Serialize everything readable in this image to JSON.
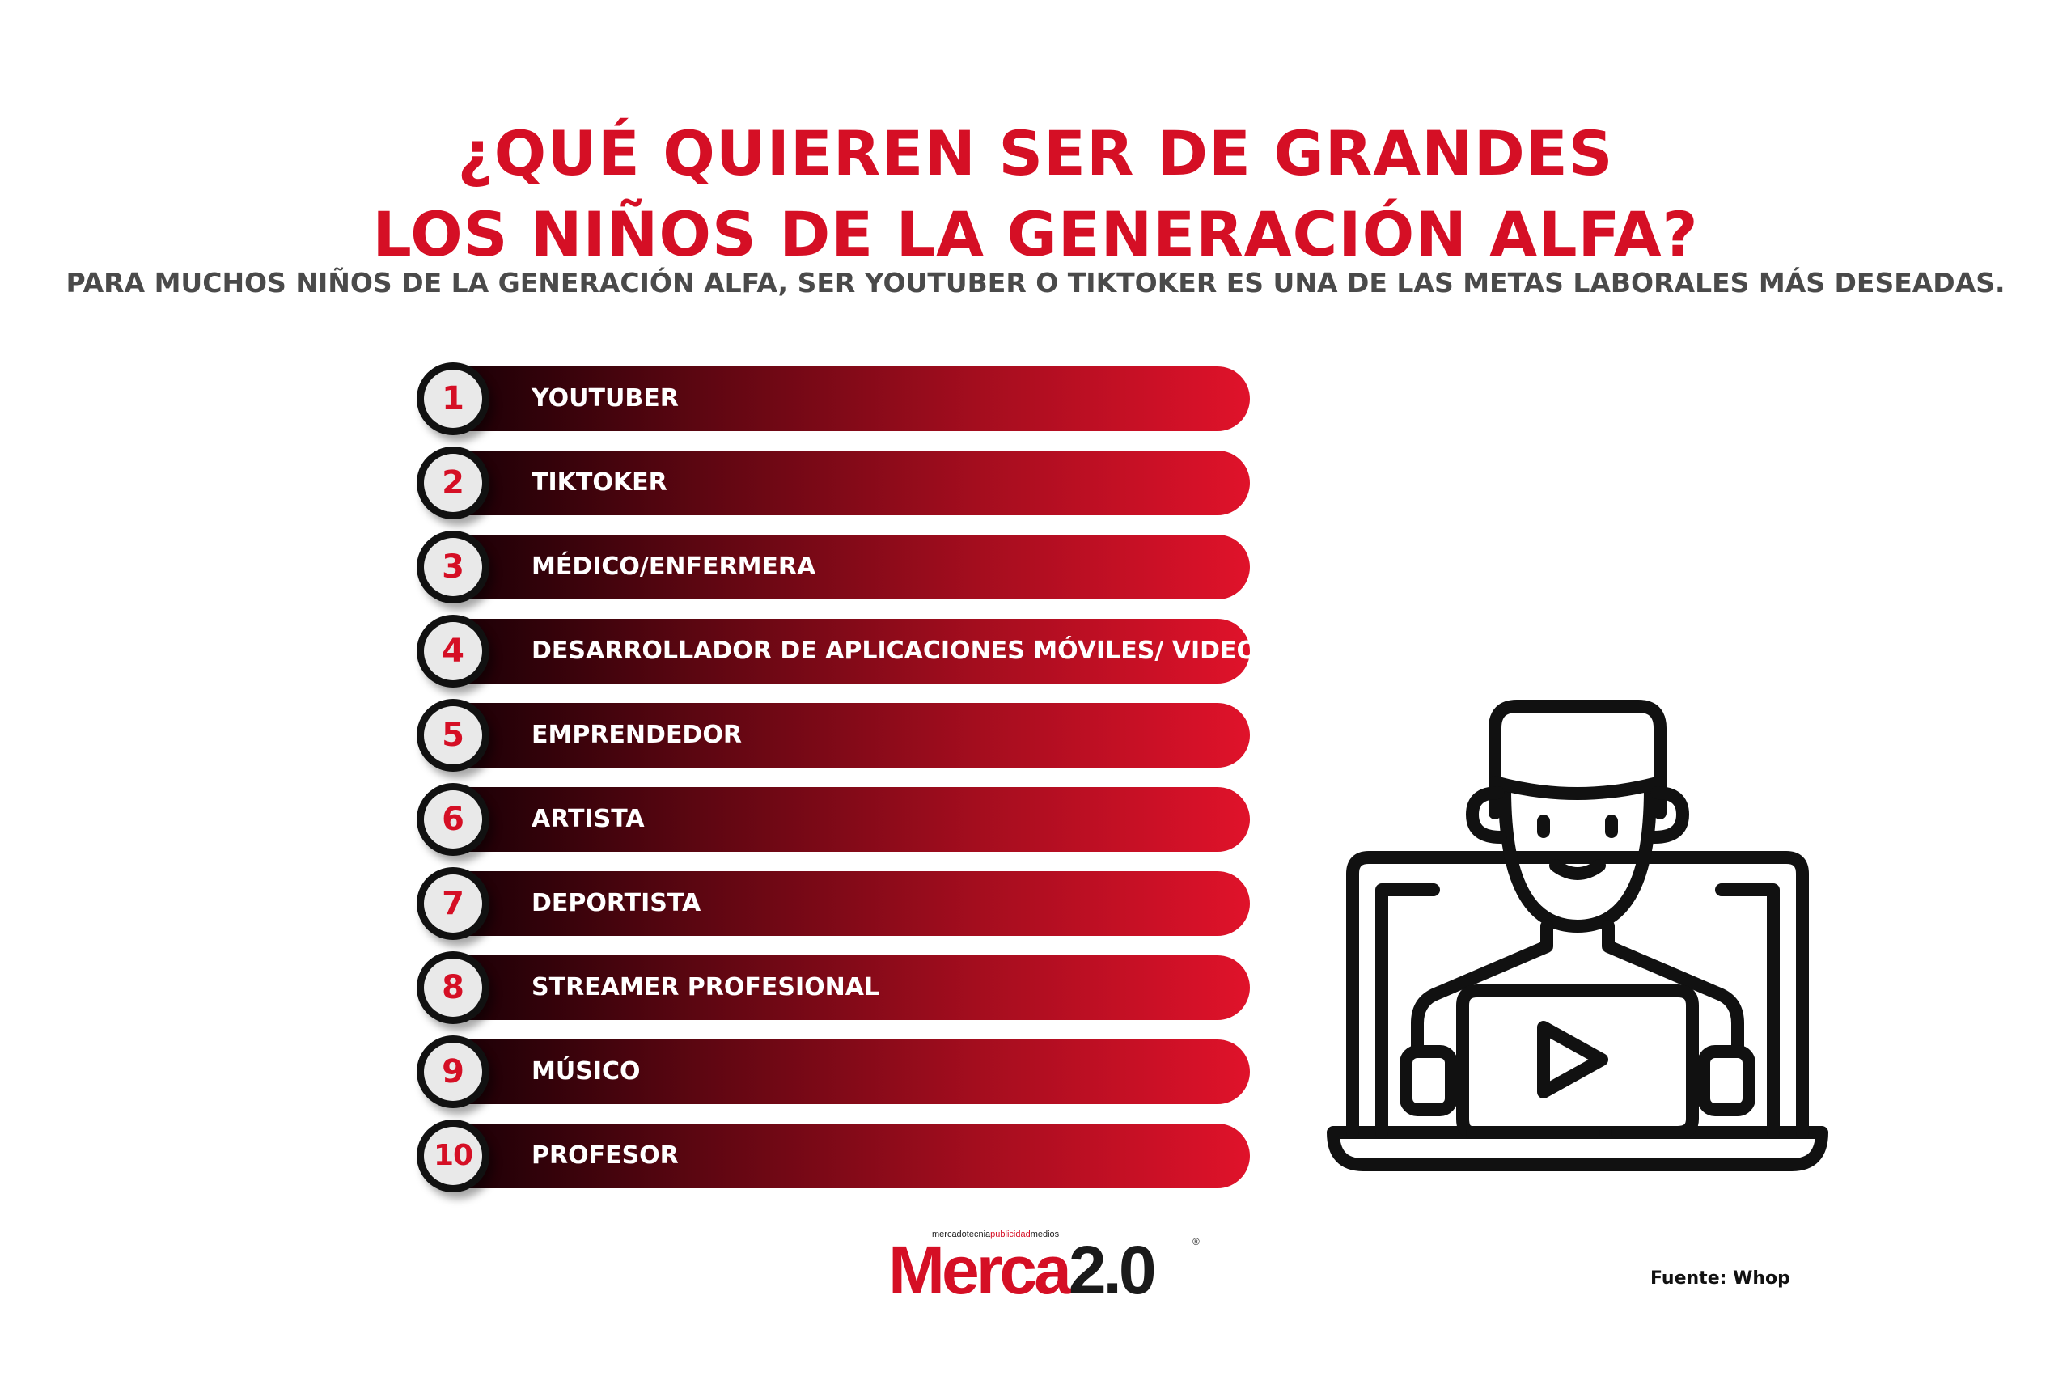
{
  "title": {
    "line1": "¿QUÉ QUIEREN SER DE GRANDES",
    "line2": "LOS NIÑOS DE LA GENERACIÓN ALFA?"
  },
  "subtitle": "PARA MUCHOS NIÑOS DE LA GENERACIÓN ALFA, SER YOUTUBER O TIKTOKER ES UNA DE LAS METAS LABORALES MÁS DESEADAS.",
  "ranking": [
    {
      "rank": "1",
      "label": "YOUTUBER"
    },
    {
      "rank": "2",
      "label": "TIKTOKER"
    },
    {
      "rank": "3",
      "label": "MÉDICO/ENFERMERA"
    },
    {
      "rank": "4",
      "label": "DESARROLLADOR DE APLICACIONES MÓVILES/ VIDEOJUEGOS"
    },
    {
      "rank": "5",
      "label": "EMPRENDEDOR"
    },
    {
      "rank": "6",
      "label": "ARTISTA"
    },
    {
      "rank": "7",
      "label": "DEPORTISTA"
    },
    {
      "rank": "8",
      "label": "STREAMER PROFESIONAL"
    },
    {
      "rank": "9",
      "label": "MÚSICO"
    },
    {
      "rank": "10",
      "label": "PROFESOR"
    }
  ],
  "logo": {
    "tag_part1": "mercadotecnia",
    "tag_part2": "publicidad",
    "tag_part3": "medios",
    "word_part1": "Merca",
    "word_part2": "2.0",
    "reg": "®"
  },
  "source": "Fuente: Whop",
  "colors": {
    "accent": "#d50f25",
    "bar_dark": "#1c0006",
    "bar_light": "#e0122a",
    "badge_ring": "#111111",
    "badge_fill": "#e9e9e9",
    "subtitle": "#4a4a4a"
  },
  "icons": {
    "illustration": "youtuber-laptop-icon"
  }
}
